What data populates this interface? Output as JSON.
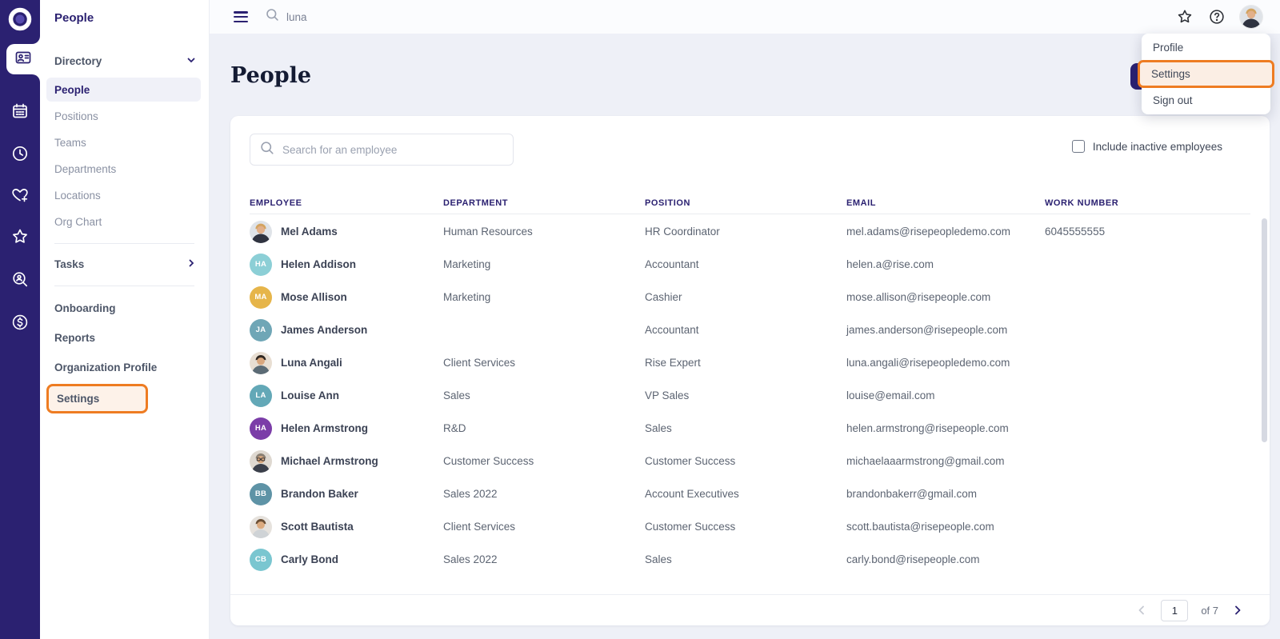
{
  "colors": {
    "accent_orange": "#ee7c22",
    "rail_bg": "#2b2171",
    "indigo": "#2b2171",
    "page_bg": "#eef0f7"
  },
  "rail": {
    "logo_icon": "rise-logo-icon",
    "items": [
      {
        "icon": "people-badge-icon",
        "active": true
      },
      {
        "icon": "calendar-icon"
      },
      {
        "icon": "clock-icon"
      },
      {
        "icon": "heart-plus-icon"
      },
      {
        "icon": "star-badge-icon"
      },
      {
        "icon": "search-person-icon"
      },
      {
        "icon": "dollar-icon"
      }
    ]
  },
  "sidebar": {
    "title": "People",
    "directory": {
      "label": "Directory",
      "items": [
        {
          "label": "People",
          "active": true
        },
        {
          "label": "Positions"
        },
        {
          "label": "Teams"
        },
        {
          "label": "Departments"
        },
        {
          "label": "Locations"
        },
        {
          "label": "Org Chart"
        }
      ]
    },
    "tasks_label": "Tasks",
    "items": [
      {
        "label": "Onboarding"
      },
      {
        "label": "Reports"
      },
      {
        "label": "Organization Profile"
      }
    ],
    "settings_label": "Settings"
  },
  "topbar": {
    "search_value": "luna"
  },
  "user_menu": {
    "profile_label": "Profile",
    "settings_label": "Settings",
    "signout_label": "Sign out"
  },
  "main": {
    "title": "People",
    "search_placeholder": "Search for an employee",
    "include_inactive_label": "Include inactive employees",
    "table": {
      "columns": [
        "EMPLOYEE",
        "DEPARTMENT",
        "POSITION",
        "EMAIL",
        "WORK NUMBER"
      ],
      "rows": [
        {
          "name": "Mel Adams",
          "avatar": {
            "type": "photo",
            "variant": "woman-blonde"
          },
          "department": "Human Resources",
          "position": "HR Coordinator",
          "email": "mel.adams@risepeopledemo.com",
          "work_number": "6045555555"
        },
        {
          "name": "Helen Addison",
          "avatar": {
            "type": "initials",
            "initials": "HA",
            "color": "#8ccfd6"
          },
          "department": "Marketing",
          "position": "Accountant",
          "email": "helen.a@rise.com",
          "work_number": ""
        },
        {
          "name": "Mose Allison",
          "avatar": {
            "type": "initials",
            "initials": "MA",
            "color": "#e6b54a"
          },
          "department": "Marketing",
          "position": "Cashier",
          "email": "mose.allison@risepeople.com",
          "work_number": ""
        },
        {
          "name": "James Anderson",
          "avatar": {
            "type": "initials",
            "initials": "JA",
            "color": "#6fa6b6"
          },
          "department": "",
          "position": "Accountant",
          "email": "james.anderson@risepeople.com",
          "work_number": ""
        },
        {
          "name": "Luna Angali",
          "avatar": {
            "type": "photo",
            "variant": "man-dark"
          },
          "department": "Client Services",
          "position": "Rise Expert",
          "email": "luna.angali@risepeopledemo.com",
          "work_number": ""
        },
        {
          "name": "Louise Ann",
          "avatar": {
            "type": "initials",
            "initials": "LA",
            "color": "#63a8b7"
          },
          "department": "Sales",
          "position": "VP Sales",
          "email": "louise@email.com",
          "work_number": ""
        },
        {
          "name": "Helen Armstrong",
          "avatar": {
            "type": "initials",
            "initials": "HA",
            "color": "#7b3da8"
          },
          "department": "R&D",
          "position": "Sales",
          "email": "helen.armstrong@risepeople.com",
          "work_number": ""
        },
        {
          "name": "Michael Armstrong",
          "avatar": {
            "type": "photo",
            "variant": "man-glasses"
          },
          "department": "Customer Success",
          "position": "Customer Success",
          "email": "michaelaaarmstrong@gmail.com",
          "work_number": ""
        },
        {
          "name": "Brandon Baker",
          "avatar": {
            "type": "initials",
            "initials": "BB",
            "color": "#5e93a6"
          },
          "department": "Sales 2022",
          "position": "Account Executives",
          "email": "brandonbakerr@gmail.com",
          "work_number": ""
        },
        {
          "name": "Scott Bautista",
          "avatar": {
            "type": "photo",
            "variant": "man-brown"
          },
          "department": "Client Services",
          "position": "Customer Success",
          "email": "scott.bautista@risepeople.com",
          "work_number": ""
        },
        {
          "name": "Carly Bond",
          "avatar": {
            "type": "initials",
            "initials": "CB",
            "color": "#7ac6d0"
          },
          "department": "Sales 2022",
          "position": "Sales",
          "email": "carly.bond@risepeople.com",
          "work_number": ""
        }
      ]
    },
    "pagination": {
      "page": "1",
      "total_label": "of 7"
    }
  }
}
